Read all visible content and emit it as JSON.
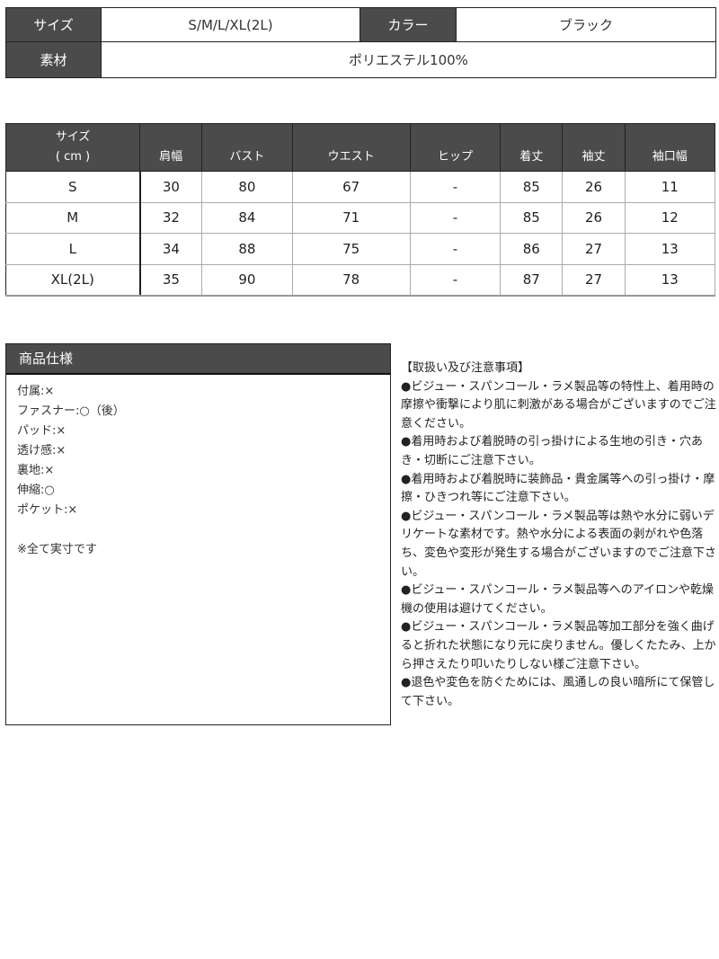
{
  "info": {
    "size_label": "サイズ",
    "size_value": "S/M/L/XL(2L)",
    "color_label": "カラー",
    "color_value": "ブラック",
    "material_label": "素材",
    "material_value": "ポリエステル100%"
  },
  "size_table": {
    "header_first": [
      "サイズ",
      "( cm )"
    ],
    "headers": [
      "肩幅",
      "バスト",
      "ウエスト",
      "ヒップ",
      "着丈",
      "袖丈",
      "袖口幅"
    ],
    "rows": [
      [
        "S",
        "30",
        "80",
        "67",
        "-",
        "85",
        "26",
        "11"
      ],
      [
        "M",
        "32",
        "84",
        "71",
        "-",
        "85",
        "26",
        "12"
      ],
      [
        "L",
        "34",
        "88",
        "75",
        "-",
        "86",
        "27",
        "13"
      ],
      [
        "XL(2L)",
        "35",
        "90",
        "78",
        "-",
        "87",
        "27",
        "13"
      ]
    ]
  },
  "spec": {
    "title": "商品仕様",
    "items": [
      "付属:×",
      "ファスナー:○（後）",
      "パッド:×",
      "透け感:×",
      "裏地:×",
      "伸縮:○",
      "ポケット:×"
    ],
    "note": "※全て実寸です"
  },
  "notes": {
    "title": "【取扱い及び注意事項】",
    "items": [
      "●ビジュー・スパンコール・ラメ製品等の特性上、着用時の摩擦や衝撃により肌に刺激がある場合がございますのでご注意ください。",
      "●着用時および着脱時の引っ掛けによる生地の引き・穴あき・切断にご注意下さい。",
      "●着用時および着脱時に装飾品・貴金属等への引っ掛け・摩擦・ひきつれ等にご注意下さい。",
      "●ビジュー・スパンコール・ラメ製品等は熱や水分に弱いデリケートな素材です。熱や水分による表面の剥がれや色落ち、変色や変形が発生する場合がございますのでご注意下さい。",
      "●ビジュー・スパンコール・ラメ製品等へのアイロンや乾燥機の使用は避けてください。",
      "●ビジュー・スパンコール・ラメ製品等加工部分を強く曲げると折れた状態になり元に戻りません。優しくたたみ、上から押さえたり叩いたりしない様ご注意下さい。",
      "●退色や変色を防ぐためには、風通しの良い暗所にて保管して下さい。"
    ]
  },
  "colors": {
    "header_bg": "#4b4b4b",
    "header_text": "#ffffff"
  }
}
